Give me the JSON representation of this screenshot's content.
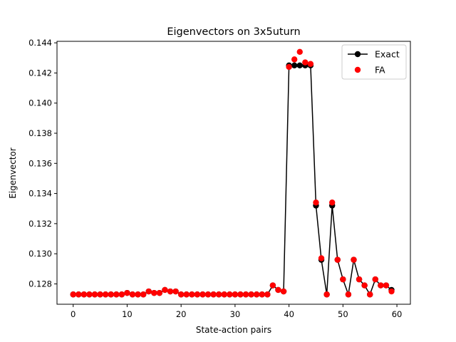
{
  "chart_data": {
    "type": "line",
    "title": "Eigenvectors on 3x5uturn",
    "xlabel": "State-action pairs",
    "ylabel": "Eigenvector",
    "xlim": [
      -3,
      62.5
    ],
    "ylim": [
      0.12665,
      0.1441
    ],
    "xticks": [
      0,
      10,
      20,
      30,
      40,
      50,
      60
    ],
    "yticks": [
      0.128,
      0.13,
      0.132,
      0.134,
      0.136,
      0.138,
      0.14,
      0.142,
      0.144
    ],
    "yticks_labels": [
      "0.128",
      "0.130",
      "0.132",
      "0.134",
      "0.136",
      "0.138",
      "0.140",
      "0.142",
      "0.144"
    ],
    "grid": false,
    "legend_position": "top-right",
    "x": [
      0,
      1,
      2,
      3,
      4,
      5,
      6,
      7,
      8,
      9,
      10,
      11,
      12,
      13,
      14,
      15,
      16,
      17,
      18,
      19,
      20,
      21,
      22,
      23,
      24,
      25,
      26,
      27,
      28,
      29,
      30,
      31,
      32,
      33,
      34,
      35,
      36,
      37,
      38,
      39,
      40,
      41,
      42,
      43,
      44,
      45,
      46,
      47,
      48,
      49,
      50,
      51,
      52,
      53,
      54,
      55,
      56,
      57,
      58,
      59
    ],
    "series": [
      {
        "name": "Exact",
        "style": "line-marker",
        "color": "#000000",
        "values": [
          0.1273,
          0.1273,
          0.1273,
          0.1273,
          0.1273,
          0.1273,
          0.1273,
          0.1273,
          0.1273,
          0.1273,
          0.1274,
          0.1273,
          0.1273,
          0.1273,
          0.1275,
          0.1274,
          0.1274,
          0.1276,
          0.1275,
          0.1275,
          0.1273,
          0.1273,
          0.1273,
          0.1273,
          0.1273,
          0.1273,
          0.1273,
          0.1273,
          0.1273,
          0.1273,
          0.1273,
          0.1273,
          0.1273,
          0.1273,
          0.1273,
          0.1273,
          0.1273,
          0.1279,
          0.1276,
          0.1275,
          0.1425,
          0.1425,
          0.1425,
          0.1425,
          0.1425,
          0.1332,
          0.1296,
          0.1273,
          0.1332,
          0.1296,
          0.1283,
          0.1273,
          0.1296,
          0.1283,
          0.1279,
          0.1273,
          0.1283,
          0.1279,
          0.1279,
          0.1276
        ]
      },
      {
        "name": "FA",
        "style": "marker",
        "color": "#ff0000",
        "values": [
          0.1273,
          0.1273,
          0.1273,
          0.1273,
          0.1273,
          0.1273,
          0.1273,
          0.1273,
          0.1273,
          0.1273,
          0.1274,
          0.1273,
          0.1273,
          0.1273,
          0.1275,
          0.1274,
          0.1274,
          0.1276,
          0.1275,
          0.1275,
          0.1273,
          0.1273,
          0.1273,
          0.1273,
          0.1273,
          0.1273,
          0.1273,
          0.1273,
          0.1273,
          0.1273,
          0.1273,
          0.1273,
          0.1273,
          0.1273,
          0.1273,
          0.1273,
          0.1273,
          0.1279,
          0.1276,
          0.1275,
          0.1424,
          0.1429,
          0.1434,
          0.1427,
          0.1426,
          0.1334,
          0.1297,
          0.1273,
          0.1334,
          0.1296,
          0.1283,
          0.1273,
          0.1296,
          0.1283,
          0.1279,
          0.1273,
          0.1283,
          0.1279,
          0.1279,
          0.1275
        ]
      }
    ]
  }
}
